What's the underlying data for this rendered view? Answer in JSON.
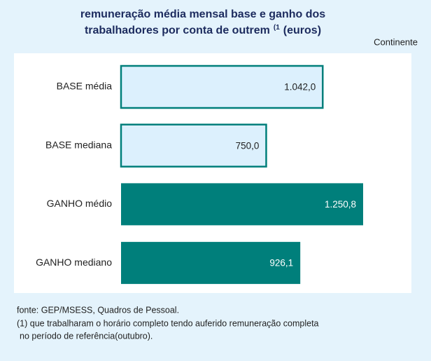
{
  "chart_data": {
    "type": "hbar",
    "title": [
      "remuneração média mensal base e ganho dos",
      "trabalhadores por conta de outrem"
    ],
    "title_superscript": "(1",
    "title_suffix": "(euros)",
    "subtitle": "Continente",
    "categories": [
      "BASE média",
      "BASE mediana",
      "GANHO médio",
      "GANHO mediano"
    ],
    "values": [
      1042.0,
      750.0,
      1250.8,
      926.1
    ],
    "value_labels": [
      "1.042,0",
      "750,0",
      "1.250,8",
      "926,1"
    ],
    "colors": [
      "#dcf0fd",
      "#dcf0fd",
      "#007f7b",
      "#007f7b"
    ],
    "border_color": "#007f7b",
    "source": "fonte: GEP/MSESS, Quadros de Pessoal.",
    "footnote": [
      "(1) que trabalharam o horário completo tendo auferido remuneração completa",
      "no período de referência(outubro)."
    ]
  }
}
